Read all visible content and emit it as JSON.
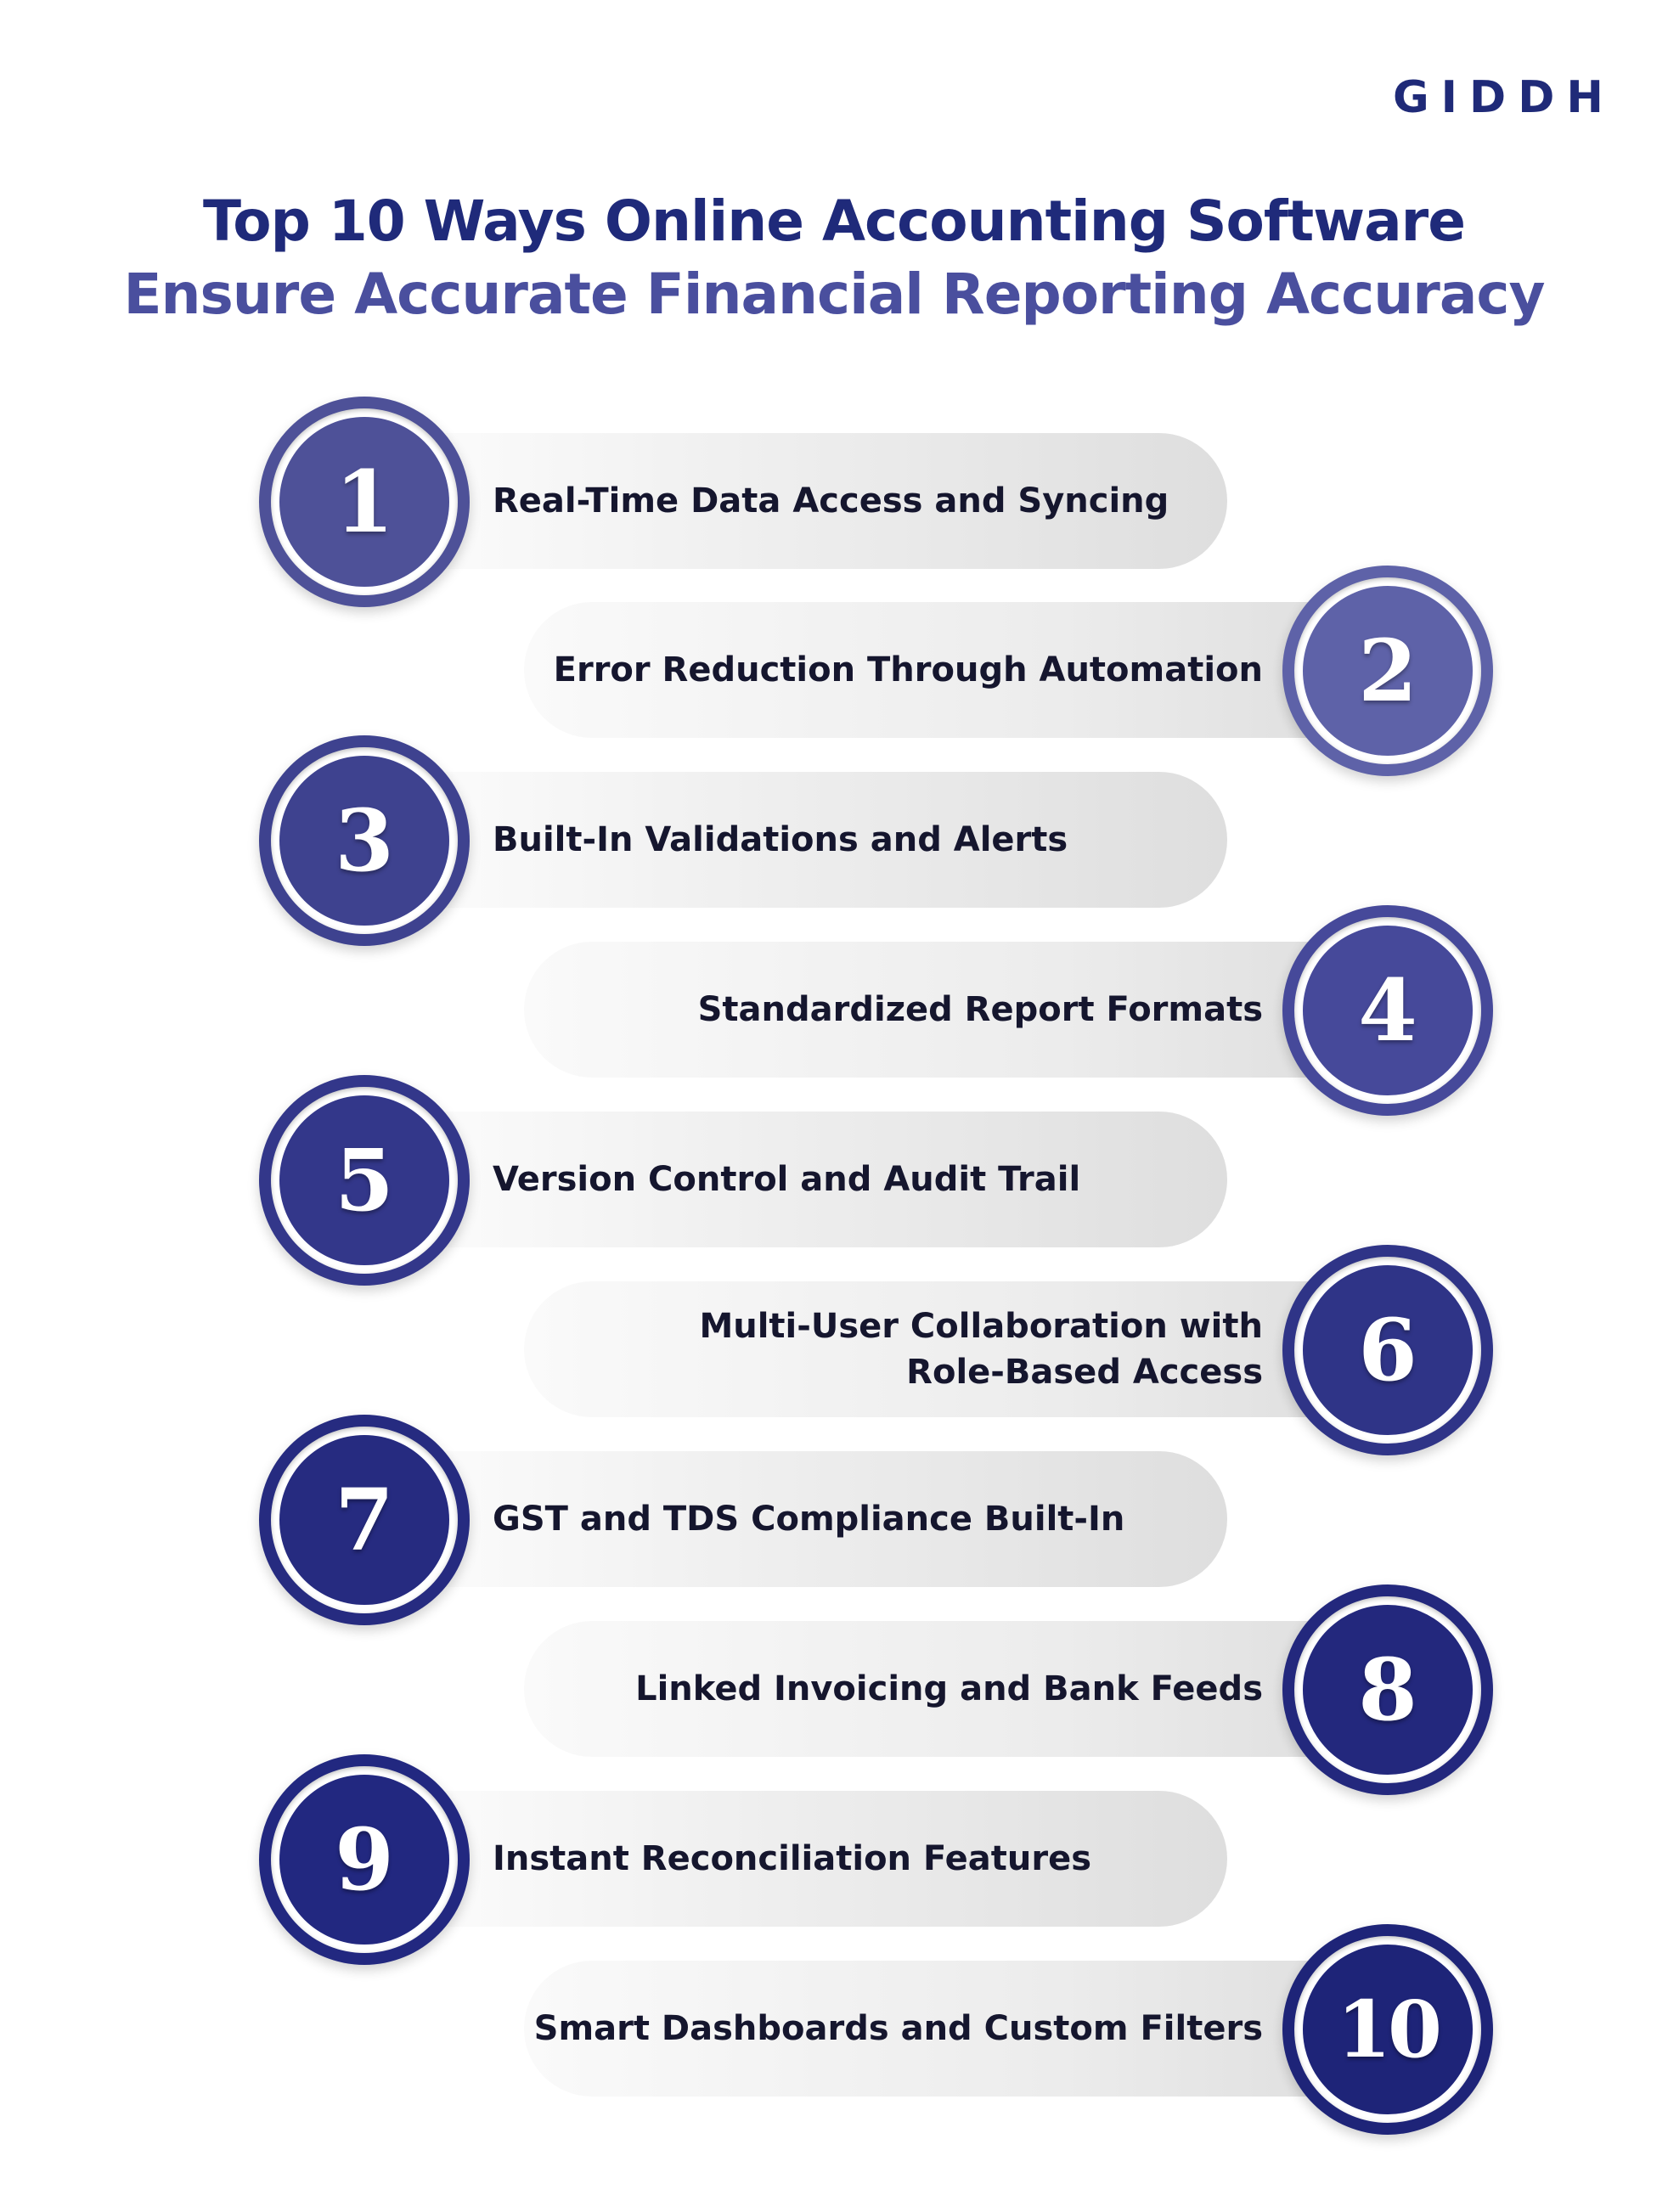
{
  "brand": {
    "logo_text": "GIDDH"
  },
  "title": {
    "line1": "Top 10 Ways Online Accounting Software",
    "line2": "Ensure Accurate Financial Reporting Accuracy"
  },
  "colors": {
    "title_line1": "#1f2a7a",
    "title_line2": "#4a4f9e",
    "item_1": "#4e5198",
    "item_2": "#5e62a8",
    "item_3": "#3e428f",
    "item_4": "#46499a",
    "item_5": "#33378a",
    "item_6": "#2f3487",
    "item_7": "#262b80",
    "item_8": "#23287d",
    "item_9": "#222880",
    "item_10": "#1e2478"
  },
  "items": [
    {
      "number": "1",
      "label": "Real-Time Data Access and Syncing"
    },
    {
      "number": "2",
      "label": "Error Reduction Through Automation"
    },
    {
      "number": "3",
      "label": "Built-In Validations and Alerts"
    },
    {
      "number": "4",
      "label": "Standardized Report Formats"
    },
    {
      "number": "5",
      "label": "Version Control and Audit Trail"
    },
    {
      "number": "6",
      "label_line1": "Multi-User Collaboration with",
      "label_line2": "Role-Based Access"
    },
    {
      "number": "7",
      "label": "GST and TDS Compliance Built-In"
    },
    {
      "number": "8",
      "label": "Linked Invoicing and Bank Feeds"
    },
    {
      "number": "9",
      "label": "Instant Reconciliation Features"
    },
    {
      "number": "10",
      "label": "Smart Dashboards and Custom Filters"
    }
  ]
}
